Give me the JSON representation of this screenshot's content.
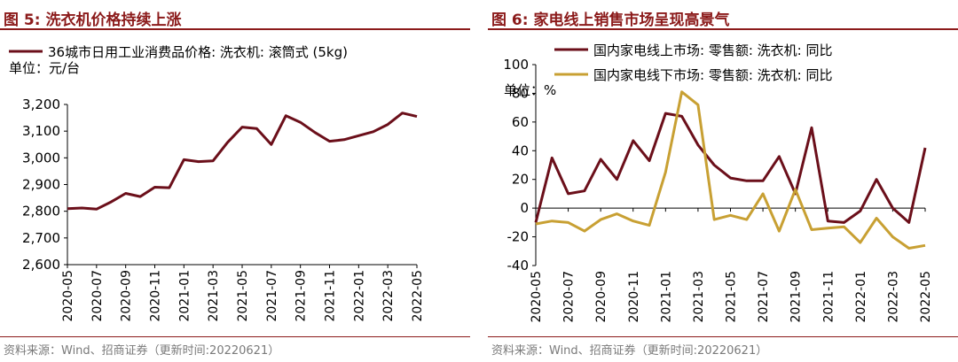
{
  "chart_data": [
    {
      "type": "line",
      "title": "图 5: 洗衣机价格持续上涨",
      "unit_label": "单位：元/台",
      "series": [
        {
          "name": "36城市日用工业消费品价格: 洗衣机: 滚筒式 (5kg)",
          "color": "#6B0F1A",
          "x": [
            "2020-05",
            "2020-06",
            "2020-07",
            "2020-08",
            "2020-09",
            "2020-10",
            "2020-11",
            "2020-12",
            "2021-01",
            "2021-02",
            "2021-03",
            "2021-04",
            "2021-05",
            "2021-06",
            "2021-07",
            "2021-08",
            "2021-09",
            "2021-10",
            "2021-11",
            "2021-12",
            "2022-01",
            "2022-02",
            "2022-03",
            "2022-04",
            "2022-05"
          ],
          "values": [
            2810,
            2812,
            2808,
            2835,
            2867,
            2855,
            2890,
            2888,
            2993,
            2986,
            2989,
            3058,
            3115,
            3110,
            3050,
            3158,
            3133,
            3095,
            3062,
            3068,
            3083,
            3098,
            3125,
            3168,
            3155
          ]
        }
      ],
      "x_tick_labels": [
        "2020-05",
        "2020-07",
        "2020-09",
        "2020-11",
        "2021-01",
        "2021-03",
        "2021-05",
        "2021-07",
        "2021-09",
        "2021-11",
        "2022-01",
        "2022-03",
        "2022-05"
      ],
      "y_ticks": [
        "2,600",
        "2,700",
        "2,800",
        "2,900",
        "3,000",
        "3,100",
        "3,200"
      ],
      "ylim": [
        2600,
        3200
      ],
      "source": "资料来源：Wind、招商证券（更新时间:20220621）"
    },
    {
      "type": "line",
      "title": "图 6: 家电线上销售市场呈现高景气",
      "unit_label": "单位：%",
      "series": [
        {
          "name": "国内家电线上市场: 零售额: 洗衣机: 同比",
          "color": "#6B0F1A",
          "x": [
            "2020-05",
            "2020-06",
            "2020-07",
            "2020-08",
            "2020-09",
            "2020-10",
            "2020-11",
            "2020-12",
            "2021-01",
            "2021-02",
            "2021-03",
            "2021-04",
            "2021-05",
            "2021-06",
            "2021-07",
            "2021-08",
            "2021-09",
            "2021-10",
            "2021-11",
            "2021-12",
            "2022-01",
            "2022-02",
            "2022-03",
            "2022-04",
            "2022-05"
          ],
          "values": [
            -10,
            35,
            10,
            12,
            34,
            20,
            47,
            33,
            66,
            64,
            44,
            30,
            21,
            19,
            19,
            36,
            10,
            56,
            -9,
            -10,
            -2,
            20,
            0,
            -10,
            42
          ]
        },
        {
          "name": "国内家电线下市场: 零售额: 洗衣机: 同比",
          "color": "#C8A033",
          "x": [
            "2020-05",
            "2020-06",
            "2020-07",
            "2020-08",
            "2020-09",
            "2020-10",
            "2020-11",
            "2020-12",
            "2021-01",
            "2021-02",
            "2021-03",
            "2021-04",
            "2021-05",
            "2021-06",
            "2021-07",
            "2021-08",
            "2021-09",
            "2021-10",
            "2021-11",
            "2021-12",
            "2022-01",
            "2022-02",
            "2022-03",
            "2022-04",
            "2022-05"
          ],
          "values": [
            -11,
            -9,
            -10,
            -16,
            -8,
            -4,
            -9,
            -12,
            25,
            81,
            72,
            -8,
            -5,
            -8,
            10,
            -16,
            13,
            -15,
            -14,
            -13,
            -24,
            -7,
            -20,
            -28,
            -26
          ]
        }
      ],
      "x_tick_labels": [
        "2020-05",
        "2020-07",
        "2020-09",
        "2020-11",
        "2021-01",
        "2021-03",
        "2021-05",
        "2021-07",
        "2021-09",
        "2021-11",
        "2022-01",
        "2022-03",
        "2022-05"
      ],
      "y_ticks": [
        "-40",
        "-20",
        "0",
        "20",
        "40",
        "60",
        "80",
        "100"
      ],
      "ylim": [
        -40,
        100
      ],
      "source": "资料来源：Wind、招商证券（更新时间:20220621）"
    }
  ]
}
